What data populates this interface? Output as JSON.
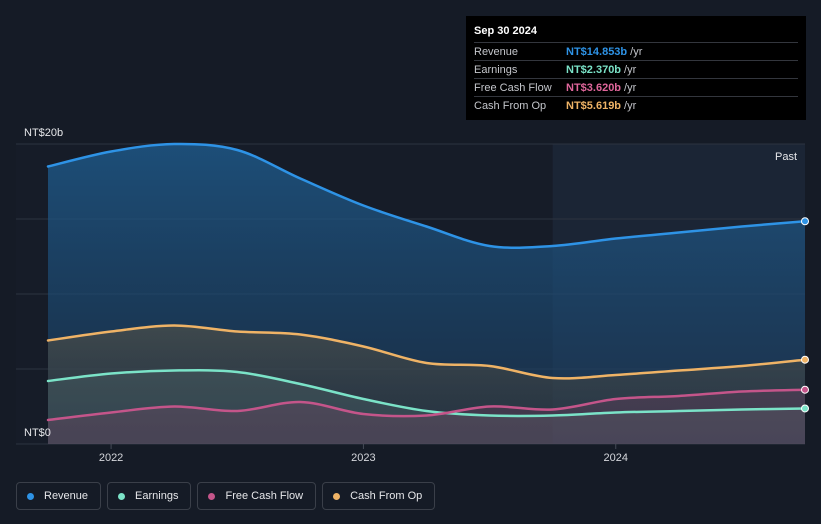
{
  "tooltip": {
    "date": "Sep 30 2024",
    "rows": [
      {
        "label": "Revenue",
        "value": "NT$14.853b",
        "unit": "/yr",
        "color": "#2e93e6"
      },
      {
        "label": "Earnings",
        "value": "NT$2.370b",
        "unit": "/yr",
        "color": "#7be3c8"
      },
      {
        "label": "Free Cash Flow",
        "value": "NT$3.620b",
        "unit": "/yr",
        "color": "#e0669b"
      },
      {
        "label": "Cash From Op",
        "value": "NT$5.619b",
        "unit": "/yr",
        "color": "#efb366"
      }
    ]
  },
  "past_label": "Past",
  "legend": [
    {
      "label": "Revenue",
      "color": "#2e93e6"
    },
    {
      "label": "Earnings",
      "color": "#7be3c8"
    },
    {
      "label": "Free Cash Flow",
      "color": "#c4558a"
    },
    {
      "label": "Cash From Op",
      "color": "#efb366"
    }
  ],
  "chart_data": {
    "type": "area",
    "title": "",
    "xlabel": "",
    "ylabel": "",
    "y_axis_labels": [
      "NT$20b",
      "NT$0"
    ],
    "x_tick_labels": [
      {
        "label": "2022",
        "t": 2022.0
      },
      {
        "label": "2023",
        "t": 2023.0
      },
      {
        "label": "2024",
        "t": 2024.0
      }
    ],
    "xlim": [
      2021.75,
      2024.75
    ],
    "ylim": [
      0,
      20
    ],
    "grid_values": [
      0,
      5,
      10,
      15,
      20
    ],
    "past_region_start": 2023.75,
    "x": [
      2021.75,
      2022.0,
      2022.25,
      2022.5,
      2022.75,
      2023.0,
      2023.25,
      2023.5,
      2023.75,
      2024.0,
      2024.25,
      2024.5,
      2024.75
    ],
    "series": [
      {
        "name": "Revenue",
        "color": "#2e93e6",
        "values": [
          18.5,
          19.5,
          20.0,
          19.6,
          17.7,
          15.9,
          14.5,
          13.2,
          13.2,
          13.7,
          14.1,
          14.5,
          14.85
        ]
      },
      {
        "name": "Cash From Op",
        "color": "#efb366",
        "values": [
          6.9,
          7.5,
          7.9,
          7.5,
          7.3,
          6.5,
          5.4,
          5.2,
          4.4,
          4.6,
          4.9,
          5.2,
          5.62
        ]
      },
      {
        "name": "Earnings",
        "color": "#7be3c8",
        "values": [
          4.2,
          4.7,
          4.9,
          4.8,
          4.0,
          3.0,
          2.2,
          1.9,
          1.9,
          2.1,
          2.2,
          2.3,
          2.37
        ]
      },
      {
        "name": "Free Cash Flow",
        "color": "#c4558a",
        "values": [
          1.6,
          2.1,
          2.5,
          2.2,
          2.8,
          2.0,
          1.9,
          2.5,
          2.3,
          3.0,
          3.2,
          3.5,
          3.62
        ]
      }
    ]
  }
}
